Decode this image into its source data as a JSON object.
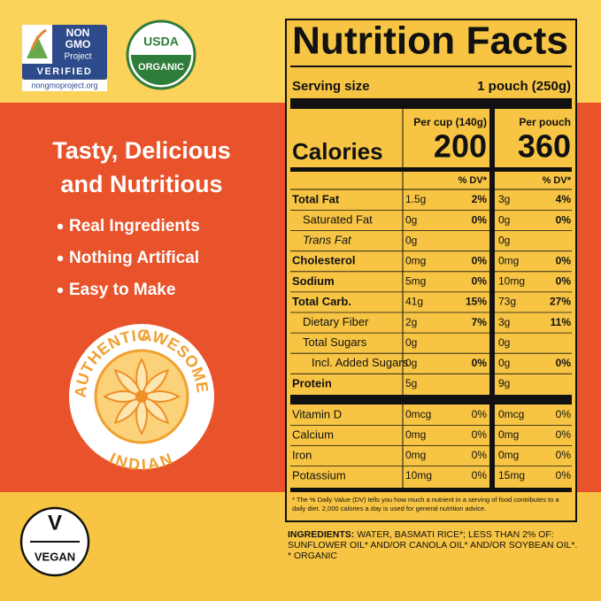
{
  "badges": {
    "nongmo": {
      "line1": "NON",
      "line2": "GMO",
      "line3": "Project",
      "line4": "VERIFIED",
      "url": "nongmoproject.org"
    },
    "usda": {
      "top": "USDA",
      "bottom": "ORGANIC"
    }
  },
  "headline": [
    "Tasty, Delicious",
    "and Nutritious"
  ],
  "bullets": [
    "Real Ingredients",
    "Nothing Artifical",
    "Easy to Make"
  ],
  "seal": {
    "left": "AUTHENTIC",
    "right": "AWESOME",
    "bottom": "INDIAN"
  },
  "vegan": {
    "letter": "V",
    "label": "VEGAN"
  },
  "label": {
    "title": "Nutrition Facts",
    "serving_label": "Serving size",
    "serving_value": "1 pouch (250g)",
    "col_cup": "Per cup (140g)",
    "col_pouch": "Per pouch",
    "calories_label": "Calories",
    "calories_cup": 200,
    "calories_pouch": 360,
    "dv_header": "% DV*",
    "rows": [
      {
        "name": "Total Fat",
        "cup": "1.5g",
        "cup_dv": "2%",
        "pouch": "3g",
        "pouch_dv": "4%"
      },
      {
        "name": "Saturated Fat",
        "cup": "0g",
        "cup_dv": "0%",
        "pouch": "0g",
        "pouch_dv": "0%"
      },
      {
        "name": "Trans Fat",
        "cup": "0g",
        "pouch": "0g"
      },
      {
        "name": "Cholesterol",
        "cup": "0mg",
        "cup_dv": "0%",
        "pouch": "0mg",
        "pouch_dv": "0%"
      },
      {
        "name": "Sodium",
        "cup": "5mg",
        "cup_dv": "0%",
        "pouch": "10mg",
        "pouch_dv": "0%"
      },
      {
        "name": "Total Carb.",
        "cup": "41g",
        "cup_dv": "15%",
        "pouch": "73g",
        "pouch_dv": "27%"
      },
      {
        "name": "Dietary Fiber",
        "cup": "2g",
        "cup_dv": "7%",
        "pouch": "3g",
        "pouch_dv": "11%"
      },
      {
        "name": "Total Sugars",
        "cup": "0g",
        "pouch": "0g"
      },
      {
        "name": "Incl. Added Sugars",
        "cup": "0g",
        "cup_dv": "0%",
        "pouch": "0g",
        "pouch_dv": "0%"
      },
      {
        "name": "Protein",
        "cup": "5g",
        "pouch": "9g"
      }
    ],
    "vitamins": [
      {
        "name": "Vitamin D",
        "cup": "0mcg",
        "cup_dv": "0%",
        "pouch": "0mcg",
        "pouch_dv": "0%"
      },
      {
        "name": "Calcium",
        "cup": "0mg",
        "cup_dv": "0%",
        "pouch": "0mg",
        "pouch_dv": "0%"
      },
      {
        "name": "Iron",
        "cup": "0mg",
        "cup_dv": "0%",
        "pouch": "0mg",
        "pouch_dv": "0%"
      },
      {
        "name": "Potassium",
        "cup": "10mg",
        "cup_dv": "0%",
        "pouch": "15mg",
        "pouch_dv": "0%"
      }
    ],
    "footnote": "* The % Daily Value (DV) tells you how much a nutrient in a serving of food contributes to a daily diet. 2,000 calories a day is used for general nutrition advice."
  },
  "ingredients": {
    "label": "INGREDIENTS:",
    "text": "WATER, BASMATI RICE*; LESS THAN 2% OF: SUNFLOWER OIL* AND/OR CANOLA OIL* AND/OR SOYBEAN OIL*.",
    "note": "* ORGANIC"
  }
}
